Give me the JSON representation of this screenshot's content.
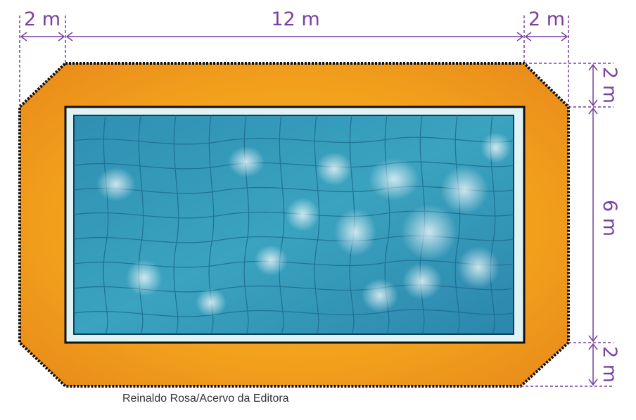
{
  "dimensions": {
    "top_left_border": "2 m",
    "pool_length": "12 m",
    "top_right_border": "2 m",
    "right_top_border": "2 m",
    "pool_width": "6 m",
    "right_bottom_border": "2 m"
  },
  "credit": "Reinaldo Rosa/Acervo da Editora",
  "colors": {
    "deck": "#f2a11c",
    "deck_edge": "#111111",
    "pool_rim": "#dff2f4",
    "water": "#2d8fb4",
    "dimension_lines": "#7a3fa0"
  }
}
